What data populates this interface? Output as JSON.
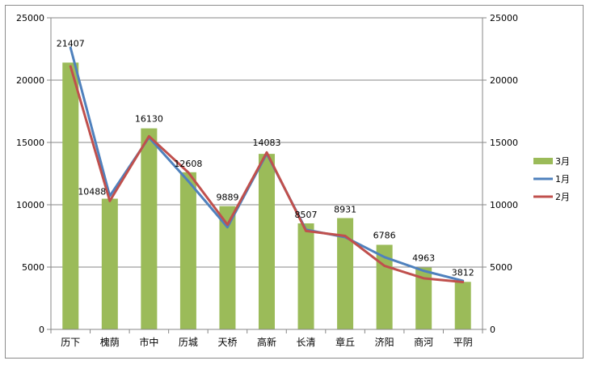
{
  "chart_data": {
    "type": "bar",
    "categories": [
      "历下",
      "槐荫",
      "市中",
      "历城",
      "天桥",
      "高新",
      "长清",
      "章丘",
      "济阳",
      "商河",
      "平阴"
    ],
    "series": [
      {
        "name": "3月",
        "kind": "bar",
        "color": "#9bbb59",
        "values": [
          21407,
          10488,
          16130,
          12608,
          9889,
          14083,
          8507,
          8931,
          6786,
          4963,
          3812
        ]
      },
      {
        "name": "1月",
        "kind": "line",
        "color": "#4f81bd",
        "values": [
          22600,
          10700,
          15400,
          11900,
          8200,
          14100,
          8000,
          7400,
          5800,
          4700,
          3900
        ]
      },
      {
        "name": "2月",
        "kind": "line",
        "color": "#c0504d",
        "values": [
          21100,
          10300,
          15500,
          12600,
          8400,
          14200,
          7900,
          7500,
          5100,
          4100,
          3800
        ]
      }
    ],
    "ylim": [
      0,
      25000
    ],
    "yticks": [
      0,
      5000,
      10000,
      15000,
      20000,
      25000
    ],
    "secondary_ylim": [
      0,
      25000
    ],
    "grid": true,
    "legend_position": "right"
  }
}
